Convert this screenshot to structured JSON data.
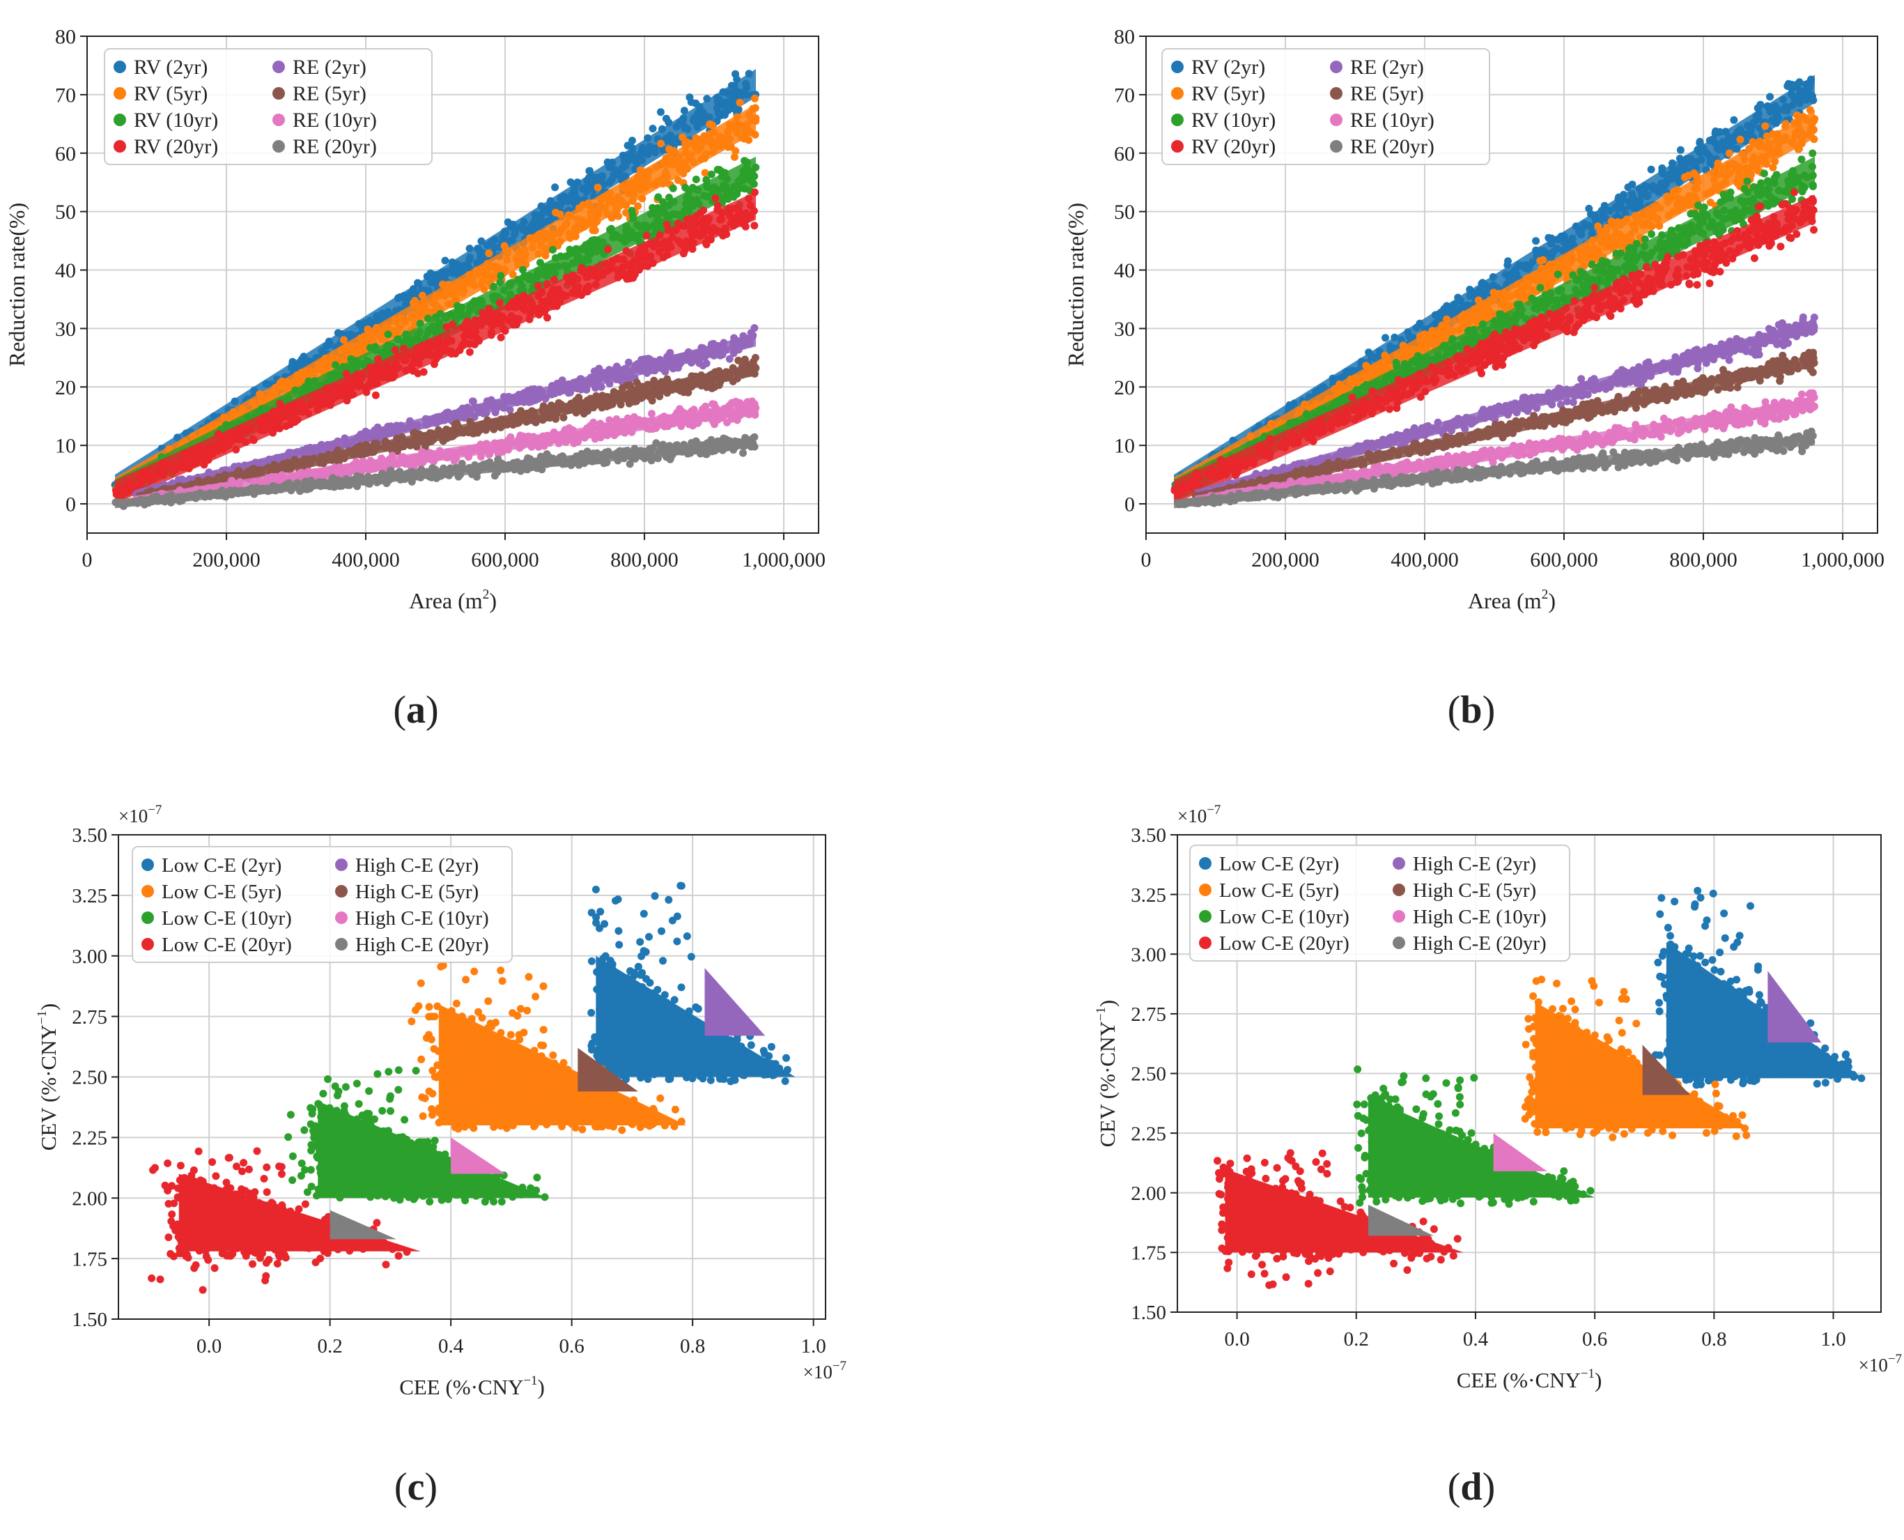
{
  "figure": {
    "panel_labels": [
      "a",
      "b",
      "c",
      "d"
    ]
  },
  "chart_data": [
    {
      "id": "a",
      "type": "scatter",
      "xlabel": "Area (m",
      "xlabel_sup": "2",
      "xlabel_suffix": ")",
      "ylabel": "Reduction rate(%)",
      "xlim": [
        0,
        1050000
      ],
      "ylim": [
        -5,
        80
      ],
      "xticks": [
        0,
        200000,
        400000,
        600000,
        800000,
        1000000
      ],
      "xtick_labels": [
        "0",
        "200,000",
        "400,000",
        "600,000",
        "800,000",
        "1,000,000"
      ],
      "yticks": [
        0,
        10,
        20,
        30,
        40,
        50,
        60,
        70,
        80
      ],
      "ytick_labels": [
        "0",
        "10",
        "20",
        "30",
        "40",
        "50",
        "60",
        "70",
        "80"
      ],
      "grid": true,
      "legend_position": "top-left",
      "series": [
        {
          "name": "RV (2yr)",
          "color": "#1f77b4",
          "x_range": [
            40000,
            960000
          ],
          "y_start": 3,
          "y_end": 72,
          "spread": 4
        },
        {
          "name": "RV (5yr)",
          "color": "#ff7f0e",
          "x_range": [
            40000,
            960000
          ],
          "y_start": 2.5,
          "y_end": 66,
          "spread": 4
        },
        {
          "name": "RV (10yr)",
          "color": "#2ca02c",
          "x_range": [
            40000,
            960000
          ],
          "y_start": 2.2,
          "y_end": 57,
          "spread": 4
        },
        {
          "name": "RV (20yr)",
          "color": "#e8272d",
          "x_range": [
            40000,
            960000
          ],
          "y_start": 2,
          "y_end": 51,
          "spread": 4
        },
        {
          "name": "RE (2yr)",
          "color": "#9467bd",
          "x_range": [
            70000,
            960000
          ],
          "y_start": 1.5,
          "y_end": 28,
          "spread": 1.8
        },
        {
          "name": "RE (5yr)",
          "color": "#8c564b",
          "x_range": [
            70000,
            960000
          ],
          "y_start": 1,
          "y_end": 23,
          "spread": 1.8
        },
        {
          "name": "RE (10yr)",
          "color": "#e377c2",
          "x_range": [
            70000,
            960000
          ],
          "y_start": 0.5,
          "y_end": 16.5,
          "spread": 1.8
        },
        {
          "name": "RE (20yr)",
          "color": "#7f7f7f",
          "x_range": [
            40000,
            960000
          ],
          "y_start": 0,
          "y_end": 10.5,
          "spread": 1.5
        }
      ]
    },
    {
      "id": "b",
      "type": "scatter",
      "xlabel": "Area (m",
      "xlabel_sup": "2",
      "xlabel_suffix": ")",
      "ylabel": "Reduction rate(%)",
      "xlim": [
        0,
        1050000
      ],
      "ylim": [
        -5,
        80
      ],
      "xticks": [
        0,
        200000,
        400000,
        600000,
        800000,
        1000000
      ],
      "xtick_labels": [
        "0",
        "200,000",
        "400,000",
        "600,000",
        "800,000",
        "1,000,000"
      ],
      "yticks": [
        0,
        10,
        20,
        30,
        40,
        50,
        60,
        70,
        80
      ],
      "ytick_labels": [
        "0",
        "10",
        "20",
        "30",
        "40",
        "50",
        "60",
        "70",
        "80"
      ],
      "grid": true,
      "legend_position": "top-left",
      "series": [
        {
          "name": "RV (2yr)",
          "color": "#1f77b4",
          "x_range": [
            40000,
            960000
          ],
          "y_start": 3,
          "y_end": 71,
          "spread": 4
        },
        {
          "name": "RV (5yr)",
          "color": "#ff7f0e",
          "x_range": [
            40000,
            960000
          ],
          "y_start": 2.5,
          "y_end": 65,
          "spread": 4
        },
        {
          "name": "RV (10yr)",
          "color": "#2ca02c",
          "x_range": [
            40000,
            960000
          ],
          "y_start": 2.2,
          "y_end": 57,
          "spread": 4
        },
        {
          "name": "RV (20yr)",
          "color": "#e8272d",
          "x_range": [
            40000,
            960000
          ],
          "y_start": 2,
          "y_end": 50.5,
          "spread": 4
        },
        {
          "name": "RE (2yr)",
          "color": "#9467bd",
          "x_range": [
            70000,
            960000
          ],
          "y_start": 1.5,
          "y_end": 30.5,
          "spread": 1.8
        },
        {
          "name": "RE (5yr)",
          "color": "#8c564b",
          "x_range": [
            70000,
            960000
          ],
          "y_start": 1,
          "y_end": 24.5,
          "spread": 1.8
        },
        {
          "name": "RE (10yr)",
          "color": "#e377c2",
          "x_range": [
            70000,
            960000
          ],
          "y_start": 0.5,
          "y_end": 17,
          "spread": 1.8
        },
        {
          "name": "RE (20yr)",
          "color": "#7f7f7f",
          "x_range": [
            40000,
            960000
          ],
          "y_start": 0,
          "y_end": 11,
          "spread": 1.5
        }
      ]
    },
    {
      "id": "c",
      "type": "scatter",
      "xlabel": "CEE (%·CNY",
      "xlabel_sup": "−1",
      "xlabel_suffix": ")",
      "ylabel": "CEV (%·CNY",
      "ylabel_sup": "−1",
      "ylabel_suffix": ")",
      "x_multiplier": "×10",
      "x_multiplier_sup": "−7",
      "y_multiplier": "×10",
      "y_multiplier_sup": "−7",
      "xlim": [
        -0.15,
        1.02
      ],
      "ylim": [
        1.5,
        3.5
      ],
      "xticks": [
        0.0,
        0.2,
        0.4,
        0.6,
        0.8,
        1.0
      ],
      "xtick_labels": [
        "0.0",
        "0.2",
        "0.4",
        "0.6",
        "0.8",
        "1.0"
      ],
      "yticks": [
        1.5,
        1.75,
        2.0,
        2.25,
        2.5,
        2.75,
        3.0,
        3.25,
        3.5
      ],
      "ytick_labels": [
        "1.50",
        "1.75",
        "2.00",
        "2.25",
        "2.50",
        "2.75",
        "3.00",
        "3.25",
        "3.50"
      ],
      "grid": true,
      "legend_position": "top-left",
      "series": [
        {
          "name": "Low C-E (2yr)",
          "color": "#1f77b4",
          "cluster": {
            "x": [
              0.63,
              0.97
            ],
            "y": [
              2.48,
              3.3
            ],
            "apex": [
              0.97,
              2.5
            ],
            "tl": [
              0.64,
              3.0
            ]
          }
        },
        {
          "name": "Low C-E (5yr)",
          "color": "#ff7f0e",
          "cluster": {
            "x": [
              0.33,
              0.79
            ],
            "y": [
              2.28,
              2.97
            ],
            "apex": [
              0.79,
              2.3
            ],
            "tl": [
              0.38,
              2.8
            ]
          }
        },
        {
          "name": "Low C-E (10yr)",
          "color": "#2ca02c",
          "cluster": {
            "x": [
              0.13,
              0.56
            ],
            "y": [
              1.98,
              2.53
            ],
            "apex": [
              0.56,
              2.0
            ],
            "tl": [
              0.18,
              2.4
            ]
          }
        },
        {
          "name": "Low C-E (20yr)",
          "color": "#e8272d",
          "cluster": {
            "x": [
              -0.1,
              0.35
            ],
            "y": [
              1.62,
              2.2
            ],
            "apex": [
              0.35,
              1.78
            ],
            "tl": [
              -0.05,
              2.1
            ]
          }
        },
        {
          "name": "High C-E (2yr)",
          "color": "#9467bd",
          "region": [
            [
              0.82,
              2.95
            ],
            [
              0.82,
              2.67
            ],
            [
              0.92,
              2.67
            ]
          ]
        },
        {
          "name": "High C-E (5yr)",
          "color": "#8c564b",
          "region": [
            [
              0.61,
              2.62
            ],
            [
              0.61,
              2.44
            ],
            [
              0.71,
              2.44
            ]
          ]
        },
        {
          "name": "High C-E (10yr)",
          "color": "#e377c2",
          "region": [
            [
              0.4,
              2.25
            ],
            [
              0.4,
              2.1
            ],
            [
              0.49,
              2.1
            ]
          ]
        },
        {
          "name": "High C-E (20yr)",
          "color": "#7f7f7f",
          "region": [
            [
              0.2,
              1.95
            ],
            [
              0.2,
              1.83
            ],
            [
              0.31,
              1.83
            ]
          ]
        }
      ]
    },
    {
      "id": "d",
      "type": "scatter",
      "xlabel": "CEE (%·CNY",
      "xlabel_sup": "−1",
      "xlabel_suffix": ")",
      "ylabel": "CEV (%·CNY",
      "ylabel_sup": "−1",
      "ylabel_suffix": ")",
      "x_multiplier": "×10",
      "x_multiplier_sup": "−7",
      "y_multiplier": "×10",
      "y_multiplier_sup": "−7",
      "xlim": [
        -0.1,
        1.08
      ],
      "ylim": [
        1.5,
        3.5
      ],
      "xticks": [
        0.0,
        0.2,
        0.4,
        0.6,
        0.8,
        1.0
      ],
      "xtick_labels": [
        "0.0",
        "0.2",
        "0.4",
        "0.6",
        "0.8",
        "1.0"
      ],
      "yticks": [
        1.5,
        1.75,
        2.0,
        2.25,
        2.5,
        2.75,
        3.0,
        3.25,
        3.5
      ],
      "ytick_labels": [
        "1.50",
        "1.75",
        "2.00",
        "2.25",
        "2.50",
        "2.75",
        "3.00",
        "3.25",
        "3.50"
      ],
      "grid": true,
      "legend_position": "top-left",
      "series": [
        {
          "name": "Low C-E (2yr)",
          "color": "#1f77b4",
          "cluster": {
            "x": [
              0.7,
              1.05
            ],
            "y": [
              2.45,
              3.27
            ],
            "apex": [
              1.05,
              2.48
            ],
            "tl": [
              0.72,
              3.05
            ]
          }
        },
        {
          "name": "Low C-E (5yr)",
          "color": "#ff7f0e",
          "cluster": {
            "x": [
              0.48,
              0.86
            ],
            "y": [
              2.23,
              2.94
            ],
            "apex": [
              0.86,
              2.27
            ],
            "tl": [
              0.5,
              2.8
            ]
          }
        },
        {
          "name": "Low C-E (10yr)",
          "color": "#2ca02c",
          "cluster": {
            "x": [
              0.2,
              0.6
            ],
            "y": [
              1.95,
              2.52
            ],
            "apex": [
              0.6,
              1.98
            ],
            "tl": [
              0.22,
              2.4
            ]
          }
        },
        {
          "name": "Low C-E (20yr)",
          "color": "#e8272d",
          "cluster": {
            "x": [
              -0.04,
              0.38
            ],
            "y": [
              1.6,
              2.18
            ],
            "apex": [
              0.38,
              1.75
            ],
            "tl": [
              -0.02,
              2.1
            ]
          }
        },
        {
          "name": "High C-E (2yr)",
          "color": "#9467bd",
          "region": [
            [
              0.89,
              2.93
            ],
            [
              0.89,
              2.63
            ],
            [
              0.98,
              2.63
            ]
          ]
        },
        {
          "name": "High C-E (5yr)",
          "color": "#8c564b",
          "region": [
            [
              0.68,
              2.62
            ],
            [
              0.68,
              2.41
            ],
            [
              0.76,
              2.41
            ]
          ]
        },
        {
          "name": "High C-E (10yr)",
          "color": "#e377c2",
          "region": [
            [
              0.43,
              2.25
            ],
            [
              0.43,
              2.09
            ],
            [
              0.52,
              2.09
            ]
          ]
        },
        {
          "name": "High C-E (20yr)",
          "color": "#7f7f7f",
          "region": [
            [
              0.22,
              1.95
            ],
            [
              0.22,
              1.82
            ],
            [
              0.33,
              1.82
            ]
          ]
        }
      ]
    }
  ]
}
